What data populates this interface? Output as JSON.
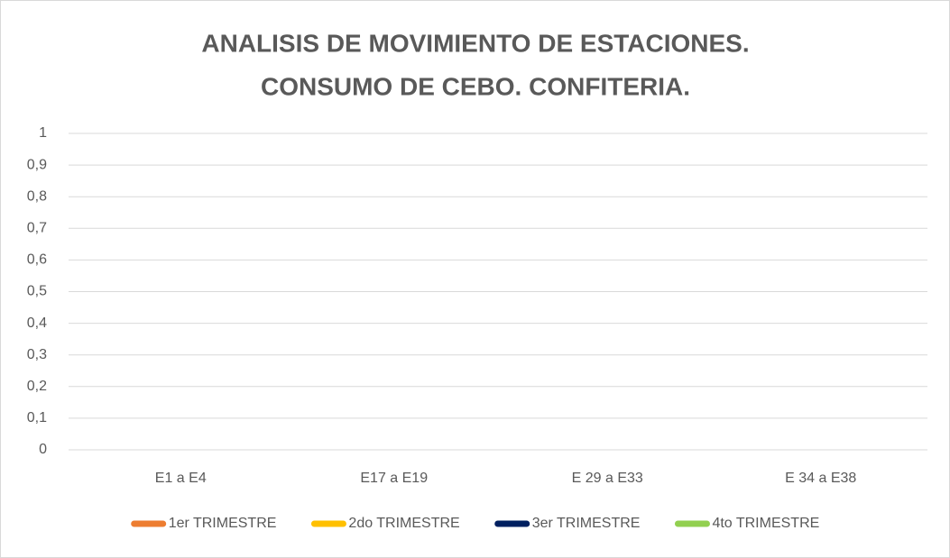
{
  "chart_data": {
    "type": "line",
    "title": [
      "ANALISIS DE MOVIMIENTO DE ESTACIONES.",
      "CONSUMO DE CEBO. CONFITERIA."
    ],
    "categories": [
      "E1 a E4",
      "E17 a E19",
      "E 29 a E33",
      "E 34 a E38"
    ],
    "series": [
      {
        "name": "1er TRIMESTRE",
        "color": "#ED7D31",
        "values": [
          0,
          0,
          0,
          0
        ]
      },
      {
        "name": "2do TRIMESTRE",
        "color": "#FFC000",
        "values": [
          0,
          0,
          0,
          0
        ]
      },
      {
        "name": "3er TRIMESTRE",
        "color": "#002060",
        "values": [
          0,
          0,
          0,
          0
        ]
      },
      {
        "name": "4to TRIMESTRE",
        "color": "#92D050",
        "values": [
          0,
          0,
          0,
          0
        ]
      }
    ],
    "ylim": [
      0,
      1
    ],
    "yticks": [
      0,
      {
        "value": 0.1,
        "label": "0,1"
      },
      {
        "value": 0.2,
        "label": "0,2"
      },
      {
        "value": 0.3,
        "label": "0,3"
      },
      {
        "value": 0.4,
        "label": "0,4"
      },
      {
        "value": 0.5,
        "label": "0,5"
      },
      {
        "value": 0.6,
        "label": "0,6"
      },
      {
        "value": 0.7,
        "label": "0,7"
      },
      {
        "value": 0.8,
        "label": "0,8"
      },
      {
        "value": 0.9,
        "label": "0,9"
      },
      1
    ],
    "grid": true,
    "legend": "bottom"
  }
}
